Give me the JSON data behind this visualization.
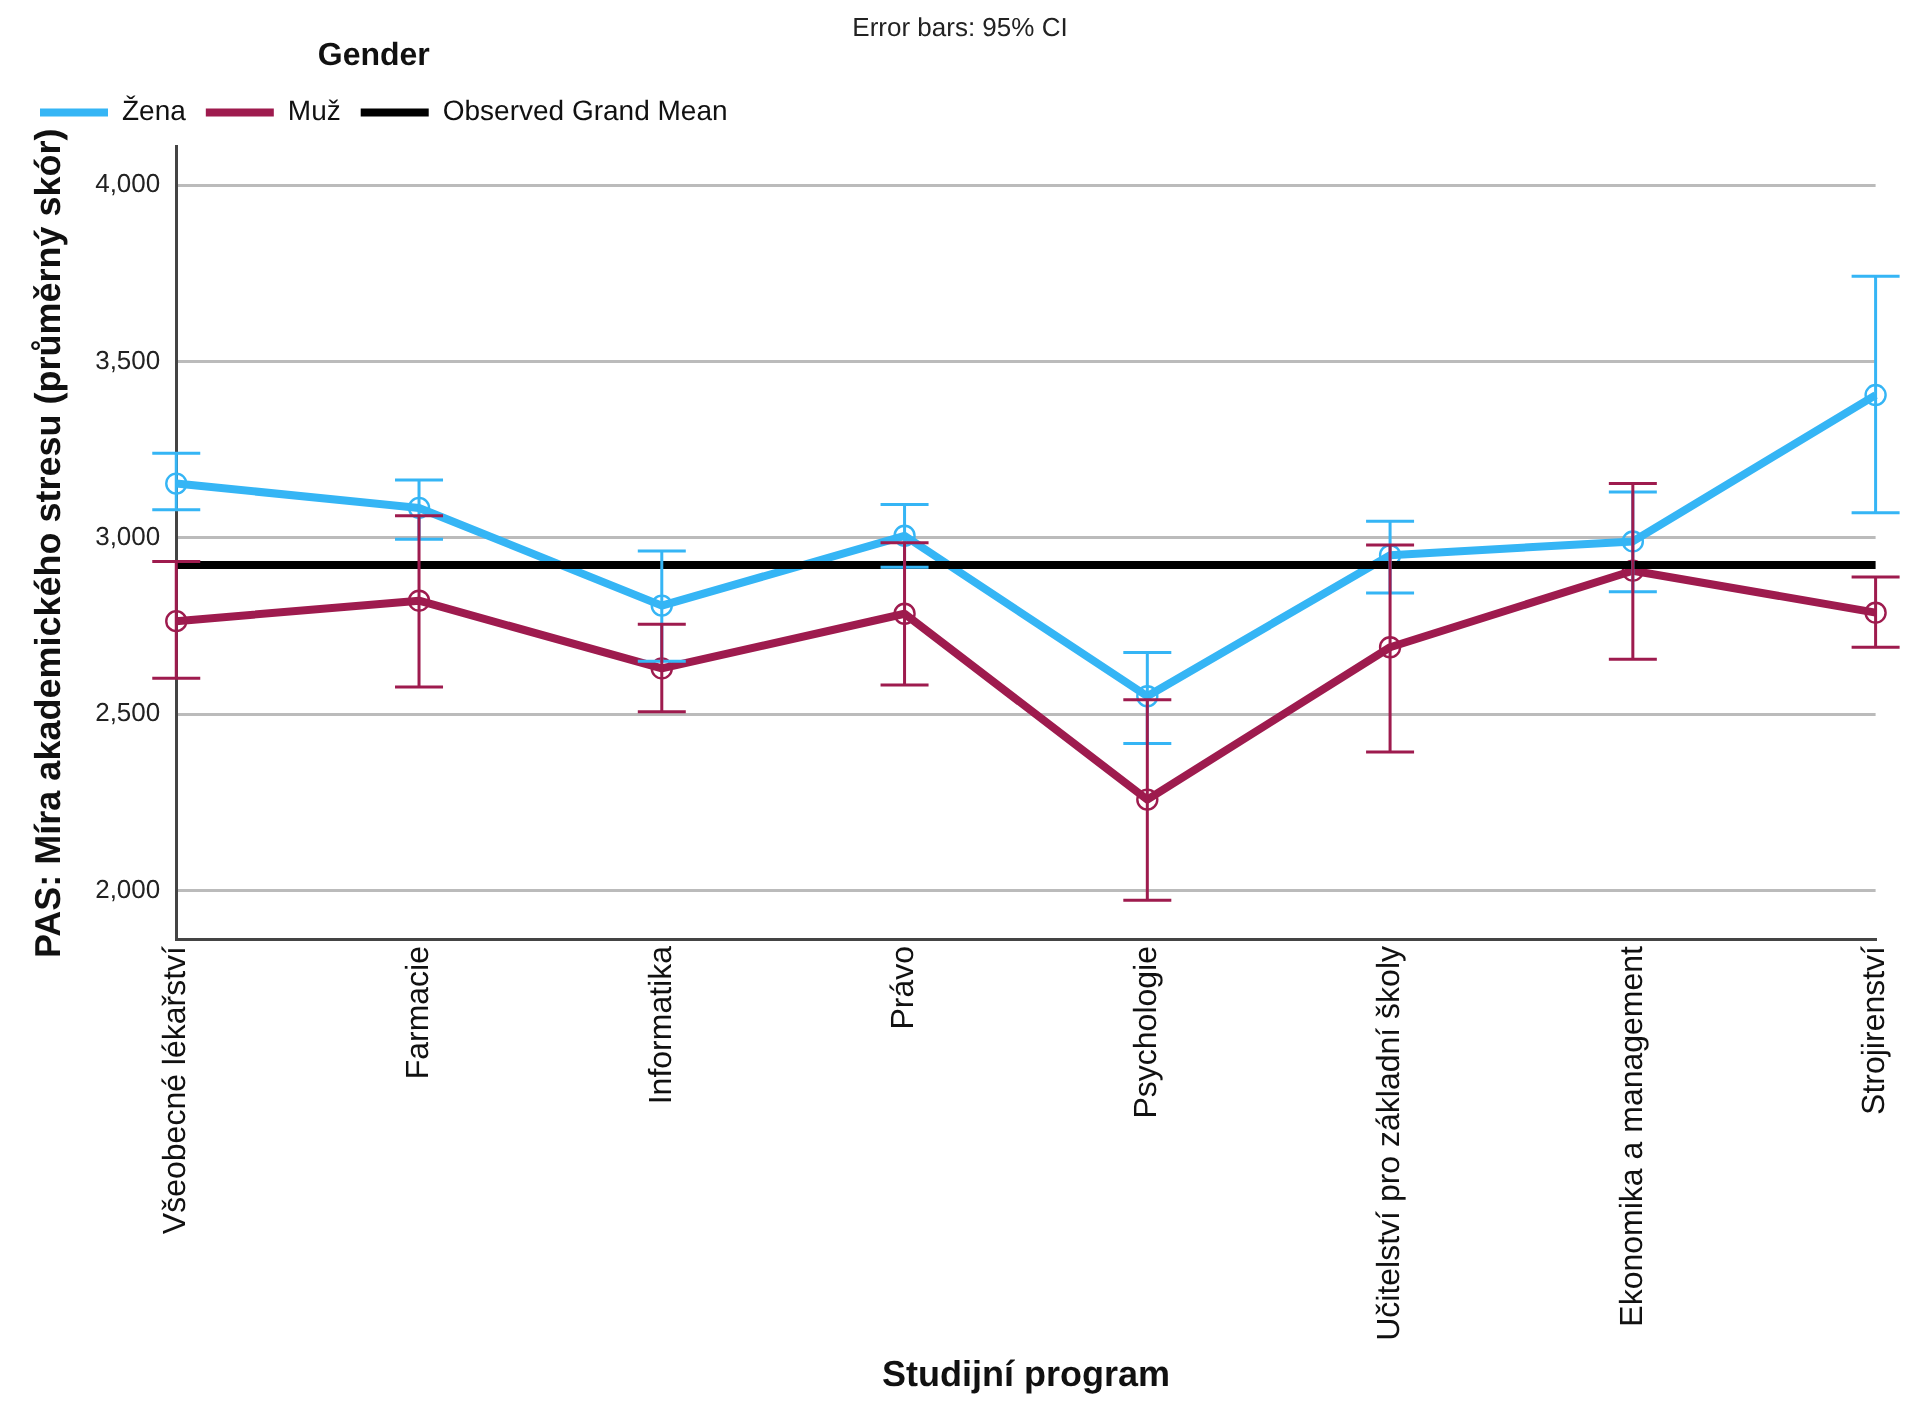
{
  "chart_data": {
    "type": "line",
    "xlabel": "Studijní program",
    "ylabel": "PAS: Míra akademického stresu (průměrný skór)",
    "legend_title": "Gender",
    "annotations": [
      "Error bars: 95% CI"
    ],
    "categories": [
      "Všeobecné lékařství",
      "Farmacie",
      "Informatika",
      "Právo",
      "Psychologie",
      "Učitelství pro základní školy",
      "Ekonomika a management",
      "Strojirenství"
    ],
    "series": [
      {
        "name": "Žena",
        "color": "#35b5f5",
        "values": [
          3154,
          3085,
          2808,
          3006,
          2551,
          2951,
          2990,
          3405
        ],
        "errors": [
          [
            3080,
            3240
          ],
          [
            2996,
            3164
          ],
          [
            2650,
            2963
          ],
          [
            2917,
            3095
          ],
          [
            2417,
            2675
          ],
          [
            2844,
            3047
          ],
          [
            2847,
            3130
          ],
          [
            3071,
            3742
          ]
        ]
      },
      {
        "name": "Muž",
        "color": "#9e1b4e",
        "values": [
          2764,
          2822,
          2630,
          2785,
          2258,
          2690,
          2907,
          2788
        ],
        "errors": [
          [
            2602,
            2933
          ],
          [
            2577,
            3063
          ],
          [
            2507,
            2755
          ],
          [
            2583,
            2986
          ],
          [
            1973,
            2541
          ],
          [
            2393,
            2980
          ],
          [
            2656,
            3154
          ],
          [
            2690,
            2889
          ]
        ]
      }
    ],
    "ref_lines": [
      {
        "axis": "y",
        "value": 2923,
        "label": "Observed Grand Mean",
        "color": "#000000"
      }
    ],
    "ylim": [
      1860,
      4110
    ],
    "yticks": [
      {
        "value": 2000,
        "label": "2,000"
      },
      {
        "value": 2500,
        "label": "2,500"
      },
      {
        "value": 3000,
        "label": "3,000"
      },
      {
        "value": 3500,
        "label": "3,500"
      },
      {
        "value": 4000,
        "label": "4,000"
      }
    ],
    "grid": "y",
    "legend": "top left",
    "marker": "circle",
    "line_style": "solid"
  }
}
